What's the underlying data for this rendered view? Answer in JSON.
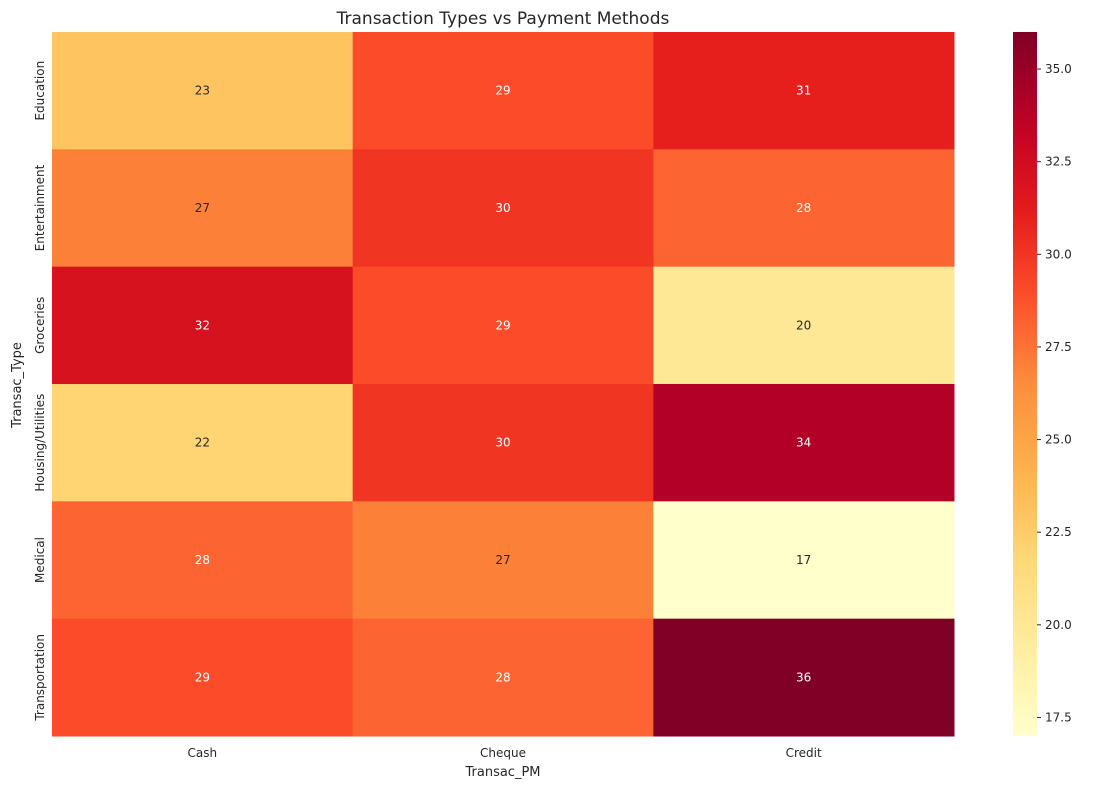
{
  "chart_data": {
    "type": "heatmap",
    "title": "Transaction Types vs Payment Methods",
    "xlabel": "Transac_PM",
    "ylabel": "Transac_Type",
    "x_categories": [
      "Cash",
      "Cheque",
      "Credit"
    ],
    "y_categories": [
      "Education",
      "Entertainment",
      "Groceries",
      "Housing/Utilities",
      "Medical",
      "Transportation"
    ],
    "values": [
      [
        23,
        29,
        31
      ],
      [
        27,
        30,
        28
      ],
      [
        32,
        29,
        20
      ],
      [
        22,
        30,
        34
      ],
      [
        28,
        27,
        17
      ],
      [
        29,
        28,
        36
      ]
    ],
    "colormap": "YlOrRd",
    "vmin": 17,
    "vmax": 36,
    "colorbar_ticks": [
      "17.5",
      "20.0",
      "22.5",
      "25.0",
      "27.5",
      "30.0",
      "32.5",
      "35.0"
    ],
    "colorbar_tick_values": [
      17.5,
      20.0,
      22.5,
      25.0,
      27.5,
      30.0,
      32.5,
      35.0
    ],
    "annotations": true
  }
}
